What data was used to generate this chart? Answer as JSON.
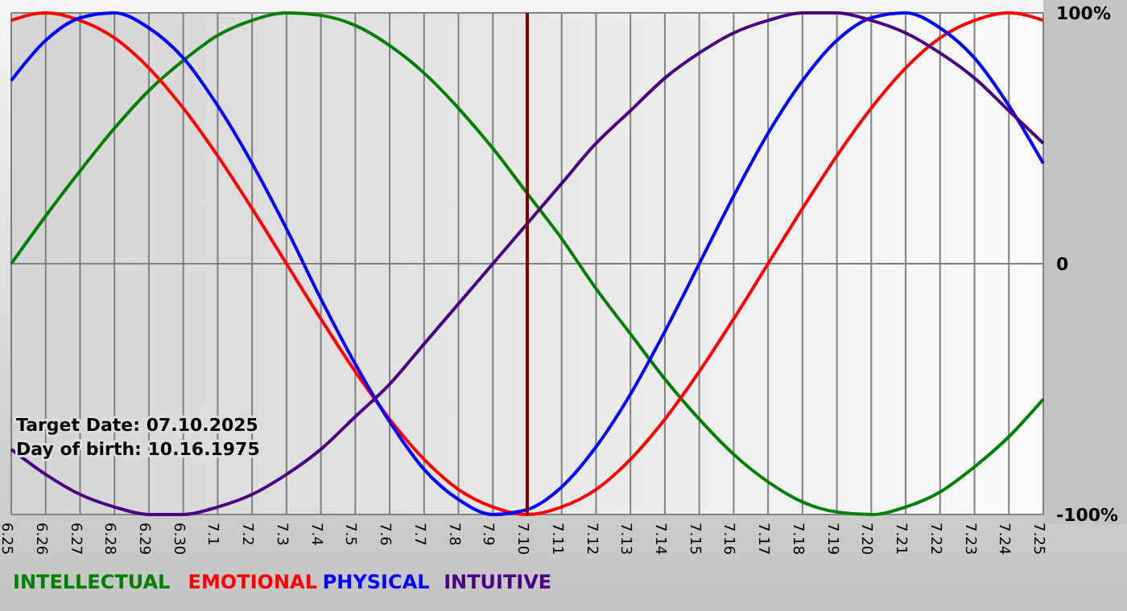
{
  "chart_data": {
    "type": "line",
    "categories": [
      "6.25",
      "6.26",
      "6.27",
      "6.28",
      "6.29",
      "6.30",
      "7.1",
      "7.2",
      "7.3",
      "7.4",
      "7.5",
      "7.6",
      "7.7",
      "7.8",
      "7.9",
      "7.10",
      "7.11",
      "7.12",
      "7.13",
      "7.14",
      "7.15",
      "7.16",
      "7.17",
      "7.18",
      "7.19",
      "7.20",
      "7.21",
      "7.22",
      "7.23",
      "7.24",
      "7.25"
    ],
    "series": [
      {
        "name": "INTELLECTUAL",
        "color": "#008000",
        "values": [
          0,
          19,
          37,
          54,
          69,
          81,
          91,
          97,
          100,
          99,
          95,
          87,
          76,
          62,
          46,
          28,
          10,
          -10,
          -28,
          -46,
          -62,
          -76,
          -87,
          -95,
          -99,
          -100,
          -97,
          -91,
          -81,
          -69,
          -54
        ]
      },
      {
        "name": "EMOTIONAL",
        "color": "#ff0000",
        "values": [
          97,
          100,
          97,
          90,
          78,
          62,
          43,
          22,
          0,
          -22,
          -43,
          -62,
          -78,
          -90,
          -97,
          -100,
          -97,
          -90,
          -78,
          -62,
          -43,
          -22,
          0,
          22,
          43,
          62,
          78,
          90,
          97,
          100,
          97
        ]
      },
      {
        "name": "PHYSICAL",
        "color": "#0000ff",
        "values": [
          73,
          89,
          98,
          100,
          94,
          82,
          63,
          40,
          14,
          -14,
          -40,
          -63,
          -82,
          -94,
          -100,
          -98,
          -89,
          -73,
          -52,
          -27,
          0,
          27,
          52,
          73,
          89,
          98,
          100,
          94,
          82,
          63,
          40
        ]
      },
      {
        "name": "INTUITIVE",
        "color": "#4b0082",
        "values": [
          -74,
          -84,
          -92,
          -97,
          -100,
          -100,
          -97,
          -92,
          -84,
          -74,
          -61,
          -48,
          -32,
          -16,
          0,
          16,
          32,
          48,
          61,
          74,
          84,
          92,
          97,
          100,
          100,
          97,
          92,
          84,
          74,
          61,
          48
        ]
      }
    ],
    "ylim": [
      -100,
      100
    ],
    "yticks": [
      {
        "value": 100,
        "label": "100%"
      },
      0,
      {
        "value": -100,
        "label": "-100%"
      }
    ],
    "grid": true,
    "legend": "bottom",
    "ref_lines": [
      {
        "axis": "x",
        "value": "7.10",
        "color": "#800000"
      }
    ],
    "annotations": [
      "Target Date: 07.10.2025",
      "Day of birth: 10.16.1975"
    ]
  }
}
